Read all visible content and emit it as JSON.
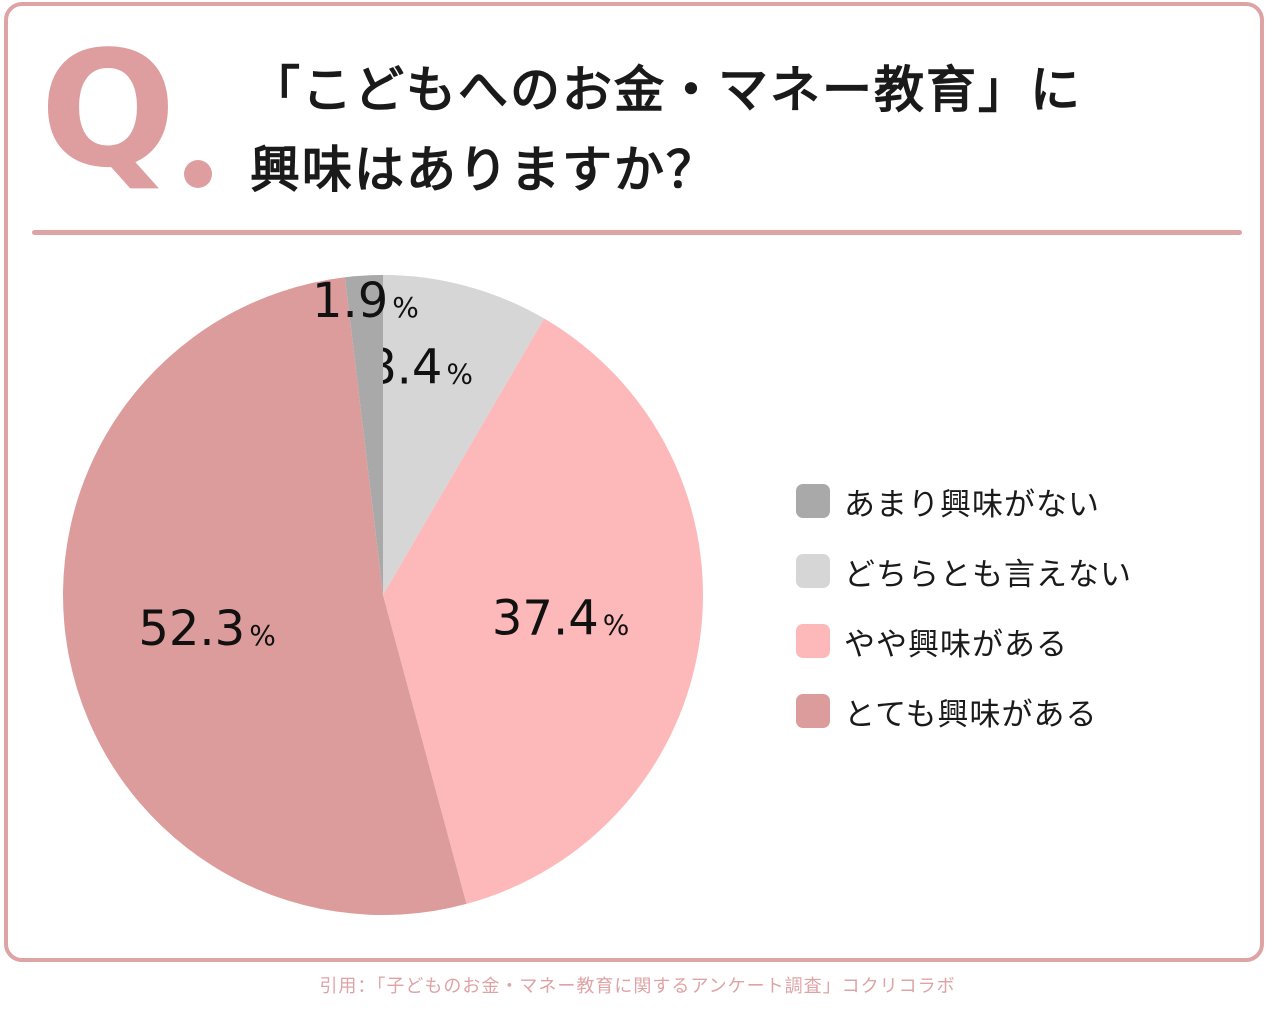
{
  "header": {
    "q_letter": "Q",
    "title_line1": "「こどもへのお金・マネー教育」に",
    "title_line2": "興味はありますか？"
  },
  "colors": {
    "frame": "#dea3a5",
    "accent": "#de9e9f",
    "text": "#1a1a1a"
  },
  "chart_data": {
    "type": "pie",
    "title": "「こどもへのお金・マネー教育」に興味はありますか？",
    "unit": "%",
    "start": "12 o'clock, clockwise",
    "slices": [
      {
        "label": "どちらとも言えない",
        "value": 8.4,
        "display": "8.4",
        "color": "#d6d6d6"
      },
      {
        "label": "やや興味がある",
        "value": 37.4,
        "display": "37.4",
        "color": "#fdb9b9"
      },
      {
        "label": "とても興味がある",
        "value": 52.3,
        "display": "52.3",
        "color": "#dd9c9c"
      },
      {
        "label": "あまり興味がない",
        "value": 1.9,
        "display": "1.9",
        "color": "#a9a9a9"
      }
    ],
    "legend": [
      {
        "label": "あまり興味がない",
        "color": "#a9a9a9"
      },
      {
        "label": "どちらとも言えない",
        "color": "#d6d6d6"
      },
      {
        "label": "やや興味がある",
        "color": "#fdb9b9"
      },
      {
        "label": "とても興味がある",
        "color": "#dd9c9c"
      }
    ],
    "legend_position": "right"
  },
  "footer": {
    "citation": "引用：「子どものお金・マネー教育に関するアンケート調査」コクリコラボ"
  }
}
